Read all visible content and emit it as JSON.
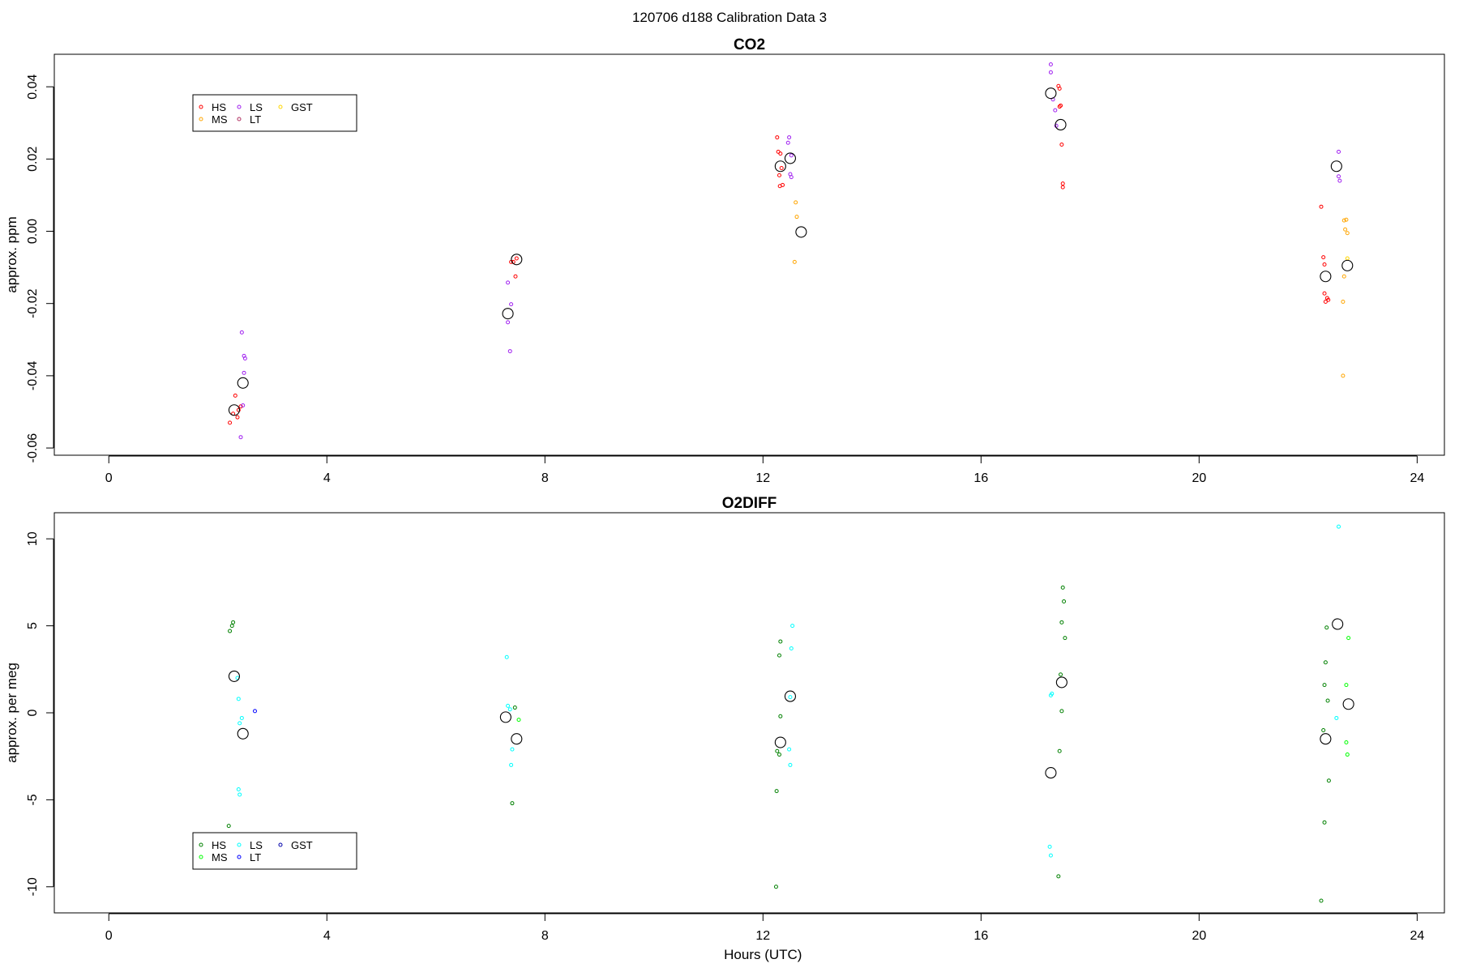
{
  "figure_title": "120706   d188   Calibration Data 3",
  "chart_data": [
    {
      "type": "scatter",
      "title": "CO2",
      "xlabel": "",
      "ylabel": "approx. ppm",
      "xlim": [
        -1.0,
        24.5
      ],
      "ylim": [
        -0.062,
        0.049
      ],
      "xticks": [
        0,
        4,
        8,
        12,
        16,
        20,
        24
      ],
      "yticks": [
        -0.06,
        -0.04,
        -0.02,
        0.0,
        0.02,
        0.04
      ],
      "ytick_labels": [
        "-0.06",
        "-0.04",
        "-0.02",
        "0.00",
        "0.02",
        "0.04"
      ],
      "grid": false,
      "legend": {
        "placement": "top-left",
        "columns": [
          [
            "HS",
            "MS"
          ],
          [
            "LS",
            "LT"
          ],
          [
            "GST"
          ]
        ]
      },
      "series": [
        {
          "name": "HS",
          "color": "#ff0000",
          "points": [
            [
              2.22,
              -0.053
            ],
            [
              2.28,
              -0.0505
            ],
            [
              2.32,
              -0.0455
            ],
            [
              2.36,
              -0.0515
            ],
            [
              2.38,
              -0.0495
            ],
            [
              2.42,
              -0.0485
            ],
            [
              7.38,
              -0.0085
            ],
            [
              7.42,
              -0.0085
            ],
            [
              7.48,
              -0.0075
            ],
            [
              7.46,
              -0.0125
            ],
            [
              12.26,
              0.026
            ],
            [
              12.28,
              0.022
            ],
            [
              12.32,
              0.0215
            ],
            [
              12.3,
              0.0155
            ],
            [
              12.34,
              0.0175
            ],
            [
              12.31,
              0.0125
            ],
            [
              12.36,
              0.0128
            ],
            [
              17.42,
              0.0402
            ],
            [
              17.44,
              0.0395
            ],
            [
              17.46,
              0.0348
            ],
            [
              17.44,
              0.0345
            ],
            [
              17.48,
              0.024
            ],
            [
              17.5,
              0.0132
            ],
            [
              17.5,
              0.0122
            ],
            [
              22.24,
              0.0068
            ],
            [
              22.28,
              -0.0072
            ],
            [
              22.3,
              -0.0092
            ],
            [
              22.3,
              -0.0172
            ],
            [
              22.32,
              -0.0195
            ],
            [
              22.35,
              -0.0185
            ],
            [
              22.37,
              -0.019
            ]
          ]
        },
        {
          "name": "MS",
          "color": "#ffa500",
          "points": [
            [
              12.6,
              0.008
            ],
            [
              12.62,
              0.004
            ],
            [
              12.58,
              -0.0085
            ],
            [
              22.66,
              0.003
            ],
            [
              22.7,
              0.0032
            ],
            [
              22.68,
              0.0005
            ],
            [
              22.72,
              -0.0005
            ],
            [
              22.66,
              -0.0125
            ],
            [
              22.64,
              -0.0195
            ],
            [
              22.64,
              -0.04
            ]
          ]
        },
        {
          "name": "LS",
          "color": "#a020f0",
          "points": [
            [
              2.44,
              -0.028
            ],
            [
              2.48,
              -0.0345
            ],
            [
              2.5,
              -0.0352
            ],
            [
              2.48,
              -0.0392
            ],
            [
              2.46,
              -0.0482
            ],
            [
              2.42,
              -0.057
            ],
            [
              7.32,
              -0.0142
            ],
            [
              7.38,
              -0.0202
            ],
            [
              7.32,
              -0.0252
            ],
            [
              7.36,
              -0.0332
            ],
            [
              12.48,
              0.026
            ],
            [
              12.46,
              0.0245
            ],
            [
              12.52,
              0.021
            ],
            [
              12.5,
              0.0158
            ],
            [
              12.52,
              0.015
            ],
            [
              17.28,
              0.0462
            ],
            [
              17.28,
              0.044
            ],
            [
              17.32,
              0.0365
            ],
            [
              17.36,
              0.0335
            ],
            [
              17.38,
              0.0292
            ],
            [
              22.56,
              0.022
            ],
            [
              22.56,
              0.0152
            ],
            [
              22.58,
              0.014
            ]
          ]
        },
        {
          "name": "LT",
          "color": "#b03060",
          "points": []
        },
        {
          "name": "GST",
          "color": "#ffd700",
          "points": [
            [
              22.72,
              -0.0075
            ]
          ]
        },
        {
          "name": "mean",
          "color": "#000000",
          "points": [
            [
              2.3,
              -0.0495
            ],
            [
              2.46,
              -0.042
            ],
            [
              7.32,
              -0.0228
            ],
            [
              7.48,
              -0.0078
            ],
            [
              12.32,
              0.018
            ],
            [
              12.5,
              0.0202
            ],
            [
              12.7,
              -0.0002
            ],
            [
              17.28,
              0.0382
            ],
            [
              17.46,
              0.0295
            ],
            [
              22.32,
              -0.0125
            ],
            [
              22.52,
              0.018
            ],
            [
              22.72,
              -0.0095
            ]
          ]
        }
      ]
    },
    {
      "type": "scatter",
      "title": "O2DIFF",
      "xlabel": "Hours (UTC)",
      "ylabel": "approx. per meg",
      "xlim": [
        -1.0,
        24.5
      ],
      "ylim": [
        -11.5,
        11.5
      ],
      "xticks": [
        0,
        4,
        8,
        12,
        16,
        20,
        24
      ],
      "yticks": [
        -10,
        -5,
        0,
        5,
        10
      ],
      "ytick_labels": [
        "-10",
        "-5",
        "0",
        "5",
        "10"
      ],
      "grid": false,
      "legend": {
        "placement": "bottom-left",
        "columns": [
          [
            "HS",
            "MS"
          ],
          [
            "LS",
            "LT"
          ],
          [
            "GST"
          ]
        ]
      },
      "series": [
        {
          "name": "HS",
          "color": "#008000",
          "points": [
            [
              2.22,
              4.7
            ],
            [
              2.26,
              5.0
            ],
            [
              2.28,
              5.2
            ],
            [
              2.2,
              -6.5
            ],
            [
              7.45,
              0.3
            ],
            [
              7.4,
              -5.2
            ],
            [
              12.32,
              4.1
            ],
            [
              12.3,
              3.3
            ],
            [
              12.32,
              -0.2
            ],
            [
              12.26,
              -2.2
            ],
            [
              12.3,
              -2.4
            ],
            [
              12.25,
              -4.5
            ],
            [
              12.24,
              -10.0
            ],
            [
              17.5,
              7.2
            ],
            [
              17.52,
              6.4
            ],
            [
              17.48,
              5.2
            ],
            [
              17.54,
              4.3
            ],
            [
              17.46,
              2.2
            ],
            [
              17.48,
              0.1
            ],
            [
              17.44,
              -2.2
            ],
            [
              17.42,
              -9.4
            ],
            [
              22.34,
              4.9
            ],
            [
              22.32,
              2.9
            ],
            [
              22.3,
              1.6
            ],
            [
              22.36,
              0.7
            ],
            [
              22.28,
              -1.0
            ],
            [
              22.38,
              -3.9
            ],
            [
              22.3,
              -6.3
            ],
            [
              22.24,
              -10.8
            ]
          ]
        },
        {
          "name": "MS",
          "color": "#00ff00",
          "points": [
            [
              7.52,
              -0.4
            ],
            [
              22.74,
              4.3
            ],
            [
              22.7,
              1.6
            ],
            [
              22.7,
              -1.7
            ],
            [
              22.72,
              -2.4
            ]
          ]
        },
        {
          "name": "LS",
          "color": "#00ffff",
          "points": [
            [
              2.36,
              2.0
            ],
            [
              2.38,
              0.8
            ],
            [
              2.44,
              -0.3
            ],
            [
              2.4,
              -0.6
            ],
            [
              2.38,
              -4.4
            ],
            [
              2.4,
              -4.7
            ],
            [
              7.3,
              3.2
            ],
            [
              7.32,
              0.4
            ],
            [
              7.36,
              0.2
            ],
            [
              7.4,
              -2.1
            ],
            [
              7.38,
              -3.0
            ],
            [
              12.54,
              5.0
            ],
            [
              12.52,
              3.7
            ],
            [
              12.5,
              0.9
            ],
            [
              12.48,
              -2.1
            ],
            [
              12.5,
              -3.0
            ],
            [
              17.3,
              1.1
            ],
            [
              17.28,
              1.0
            ],
            [
              17.26,
              -7.7
            ],
            [
              17.28,
              -8.2
            ],
            [
              22.56,
              10.7
            ],
            [
              22.52,
              -0.3
            ]
          ]
        },
        {
          "name": "LT",
          "color": "#0000ff",
          "points": [
            [
              2.68,
              0.1
            ]
          ]
        },
        {
          "name": "GST",
          "color": "#0000aa",
          "points": []
        },
        {
          "name": "mean",
          "color": "#000000",
          "points": [
            [
              2.3,
              2.1
            ],
            [
              2.46,
              -1.2
            ],
            [
              7.28,
              -0.25
            ],
            [
              7.48,
              -1.5
            ],
            [
              12.32,
              -1.7
            ],
            [
              12.5,
              0.95
            ],
            [
              17.28,
              -3.45
            ],
            [
              17.48,
              1.75
            ],
            [
              22.32,
              -1.5
            ],
            [
              22.54,
              5.1
            ],
            [
              22.74,
              0.5
            ]
          ]
        }
      ]
    }
  ]
}
